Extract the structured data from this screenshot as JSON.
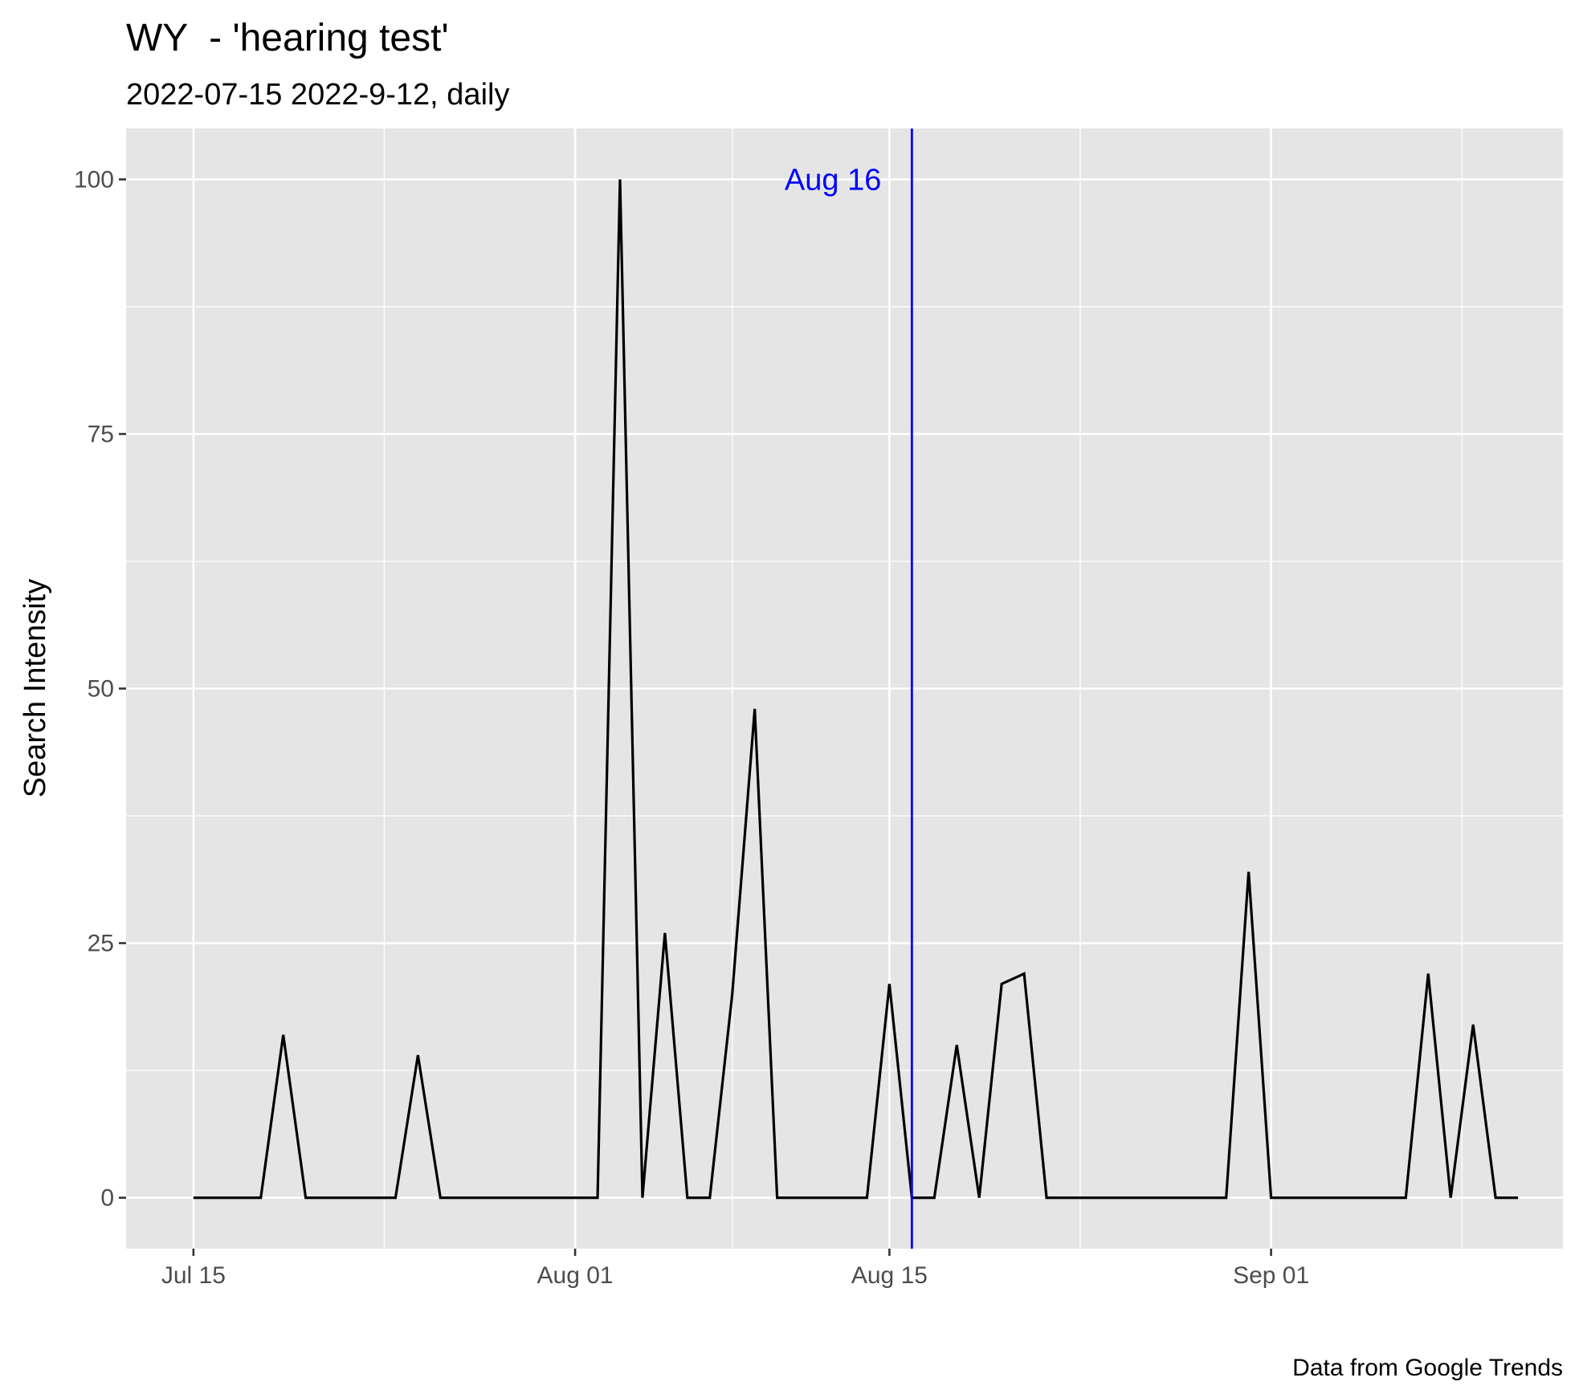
{
  "chart_data": {
    "type": "line",
    "title": "WY  - 'hearing test'",
    "subtitle": "2022-07-15 2022-9-12, daily",
    "xlabel": "",
    "ylabel": "Search Intensity",
    "caption": "Data from Google Trends",
    "x_ticks": [
      {
        "date": "2022-07-15",
        "label": "Jul 15"
      },
      {
        "date": "2022-08-01",
        "label": "Aug 01"
      },
      {
        "date": "2022-08-15",
        "label": "Aug 15"
      },
      {
        "date": "2022-09-01",
        "label": "Sep 01"
      }
    ],
    "y_ticks": [
      0,
      25,
      50,
      75,
      100
    ],
    "xlim": [
      "2022-07-12",
      "2022-09-14"
    ],
    "ylim": [
      -5,
      105
    ],
    "grid": true,
    "background_color": "#e5e5e5",
    "line_color": "#000000",
    "vline": {
      "date": "2022-08-16",
      "label": "Aug 16",
      "color": "#0000ff"
    },
    "series": [
      {
        "x": [
          "2022-07-15",
          "2022-07-16",
          "2022-07-17",
          "2022-07-18",
          "2022-07-19",
          "2022-07-20",
          "2022-07-21",
          "2022-07-22",
          "2022-07-23",
          "2022-07-24",
          "2022-07-25",
          "2022-07-26",
          "2022-07-27",
          "2022-07-28",
          "2022-07-29",
          "2022-07-30",
          "2022-07-31",
          "2022-08-01",
          "2022-08-02",
          "2022-08-03",
          "2022-08-04",
          "2022-08-05",
          "2022-08-06",
          "2022-08-07",
          "2022-08-08",
          "2022-08-09",
          "2022-08-10",
          "2022-08-11",
          "2022-08-12",
          "2022-08-13",
          "2022-08-14",
          "2022-08-15",
          "2022-08-16",
          "2022-08-17",
          "2022-08-18",
          "2022-08-19",
          "2022-08-20",
          "2022-08-21",
          "2022-08-22",
          "2022-08-23",
          "2022-08-24",
          "2022-08-25",
          "2022-08-26",
          "2022-08-27",
          "2022-08-28",
          "2022-08-29",
          "2022-08-30",
          "2022-08-31",
          "2022-09-01",
          "2022-09-02",
          "2022-09-03",
          "2022-09-04",
          "2022-09-05",
          "2022-09-06",
          "2022-09-07",
          "2022-09-08",
          "2022-09-09",
          "2022-09-10",
          "2022-09-11",
          "2022-09-12"
        ],
        "values": [
          0,
          0,
          0,
          0,
          16,
          0,
          0,
          0,
          0,
          0,
          14,
          0,
          0,
          0,
          0,
          0,
          0,
          0,
          0,
          100,
          0,
          26,
          0,
          0,
          20,
          48,
          0,
          0,
          0,
          0,
          0,
          21,
          0,
          0,
          15,
          0,
          21,
          22,
          0,
          0,
          0,
          0,
          0,
          0,
          0,
          0,
          0,
          32,
          0,
          0,
          0,
          0,
          0,
          0,
          0,
          22,
          0,
          17,
          0,
          0
        ]
      }
    ]
  }
}
